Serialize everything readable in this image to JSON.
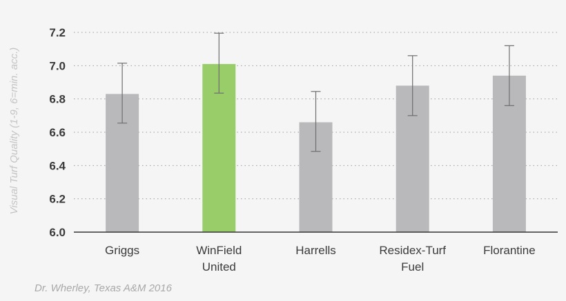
{
  "chart_data": {
    "type": "bar",
    "ylabel": "Visual Turf Quality (1-9, 6=min. acc.)",
    "xlabel": "",
    "ylim": [
      6.0,
      7.2
    ],
    "yticks": [
      "6.0",
      "6.2",
      "6.4",
      "6.6",
      "6.8",
      "7.0",
      "7.2"
    ],
    "grid": "horizontal-dotted",
    "categories": [
      [
        "Griggs"
      ],
      [
        "WinField",
        "United"
      ],
      [
        "Harrells"
      ],
      [
        "Residex-Turf",
        "Fuel"
      ],
      [
        "Florantine"
      ]
    ],
    "values": [
      6.83,
      7.01,
      6.66,
      6.88,
      6.94
    ],
    "error_low": [
      6.655,
      6.835,
      6.485,
      6.7,
      6.76
    ],
    "error_high": [
      7.015,
      7.195,
      6.845,
      7.06,
      7.12
    ],
    "colors": [
      "#b9b9bb",
      "#99cd6a",
      "#b9b9bb",
      "#b9b9bb",
      "#b9b9bb"
    ],
    "source": "Dr. Wherley, Texas A&M 2016"
  }
}
